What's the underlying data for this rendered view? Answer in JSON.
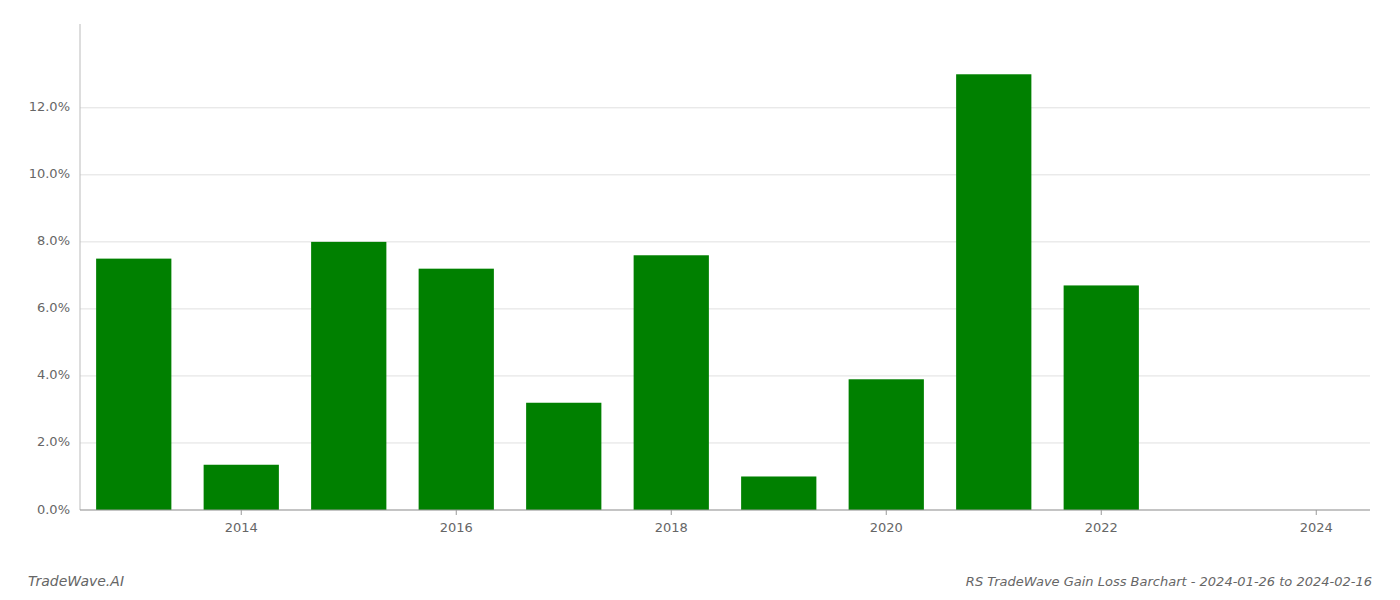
{
  "chart_data": {
    "type": "bar",
    "title": "RS TradeWave Gain Loss Barchart - 2024-01-26 to 2024-02-16",
    "annotations": [
      "TradeWave.AI"
    ],
    "x": [
      2013,
      2014,
      2015,
      2016,
      2017,
      2018,
      2019,
      2020,
      2021,
      2022,
      2023
    ],
    "values": [
      0.075,
      0.0135,
      0.08,
      0.072,
      0.032,
      0.076,
      0.01,
      0.039,
      0.13,
      0.067,
      0.0
    ],
    "color": "#008000",
    "xlim": [
      2012.5,
      2024.5
    ],
    "xticks": [
      2014,
      2016,
      2018,
      2020,
      2022,
      2024
    ],
    "ylim": [
      0,
      0.145
    ],
    "yticks": [
      {
        "value": 0.0,
        "label": "0.0%"
      },
      {
        "value": 0.02,
        "label": "2.0%"
      },
      {
        "value": 0.04,
        "label": "4.0%"
      },
      {
        "value": 0.06,
        "label": "6.0%"
      },
      {
        "value": 0.08,
        "label": "8.0%"
      },
      {
        "value": 0.1,
        "label": "10.0%"
      },
      {
        "value": 0.12,
        "label": "12.0%"
      }
    ],
    "grid": true
  }
}
